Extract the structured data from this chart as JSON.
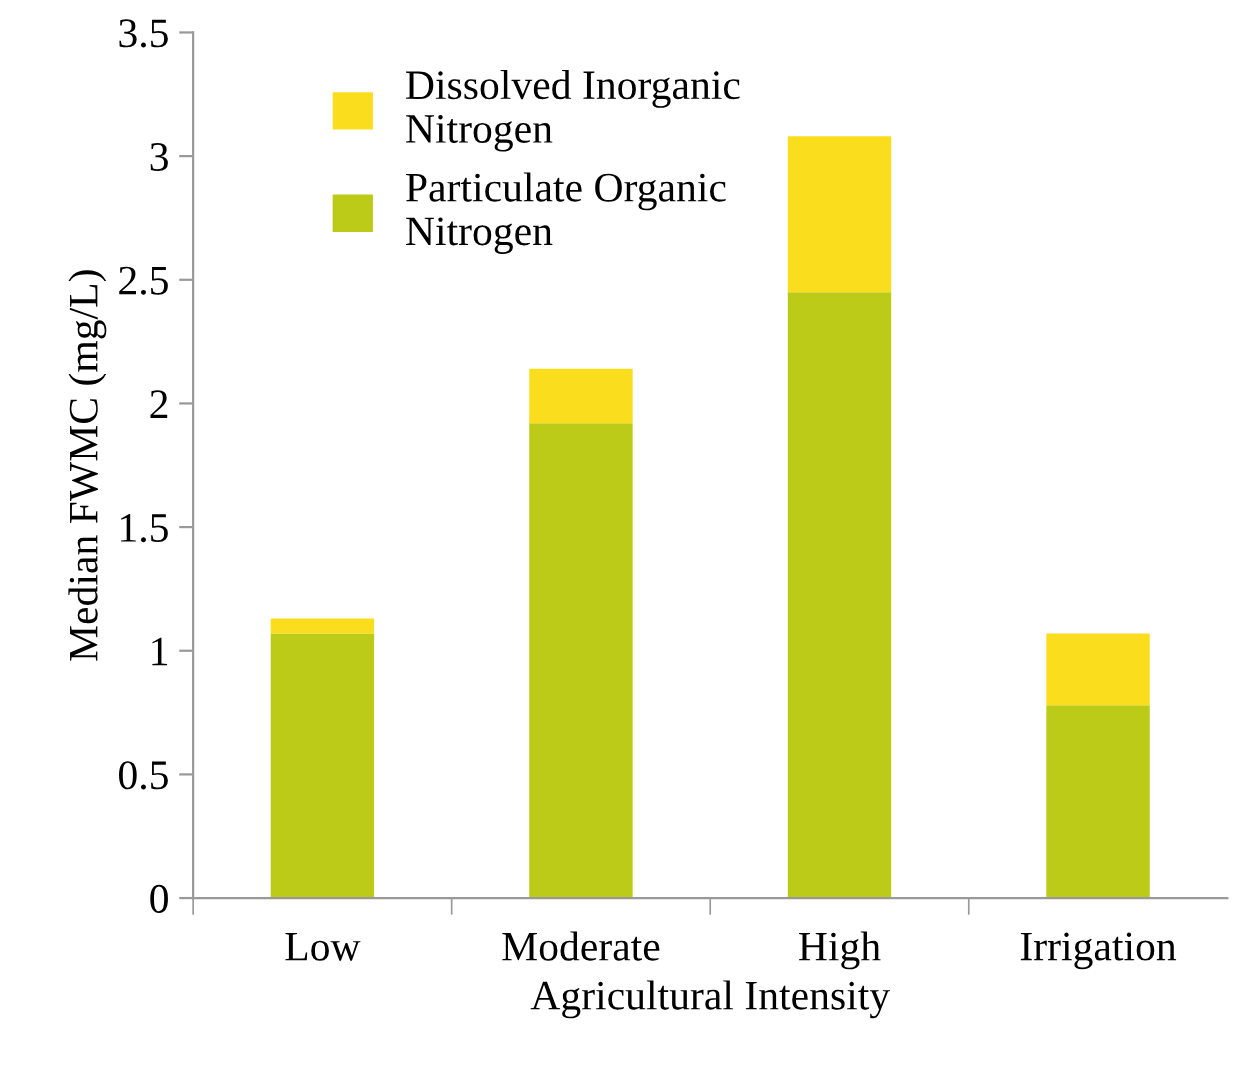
{
  "chart_data": {
    "type": "bar",
    "stacked": true,
    "xlabel": "Agricultural Intensity",
    "ylabel": "Median FWMC (mg/L)",
    "categories": [
      "Low",
      "Moderate",
      "High",
      "Irrigation"
    ],
    "series": [
      {
        "name": "Particulate Organic Nitrogen",
        "color": "#bccb18",
        "values": [
          1.07,
          1.92,
          2.45,
          0.78
        ]
      },
      {
        "name": "Dissolved Inorganic Nitrogen",
        "color": "#fade1e",
        "values": [
          0.06,
          0.22,
          0.63,
          0.29
        ]
      }
    ],
    "ylim": [
      0,
      3.5
    ],
    "yticks": [
      0,
      0.5,
      1,
      1.5,
      2,
      2.5,
      3,
      3.5
    ],
    "grid": false,
    "legend": "top left"
  }
}
